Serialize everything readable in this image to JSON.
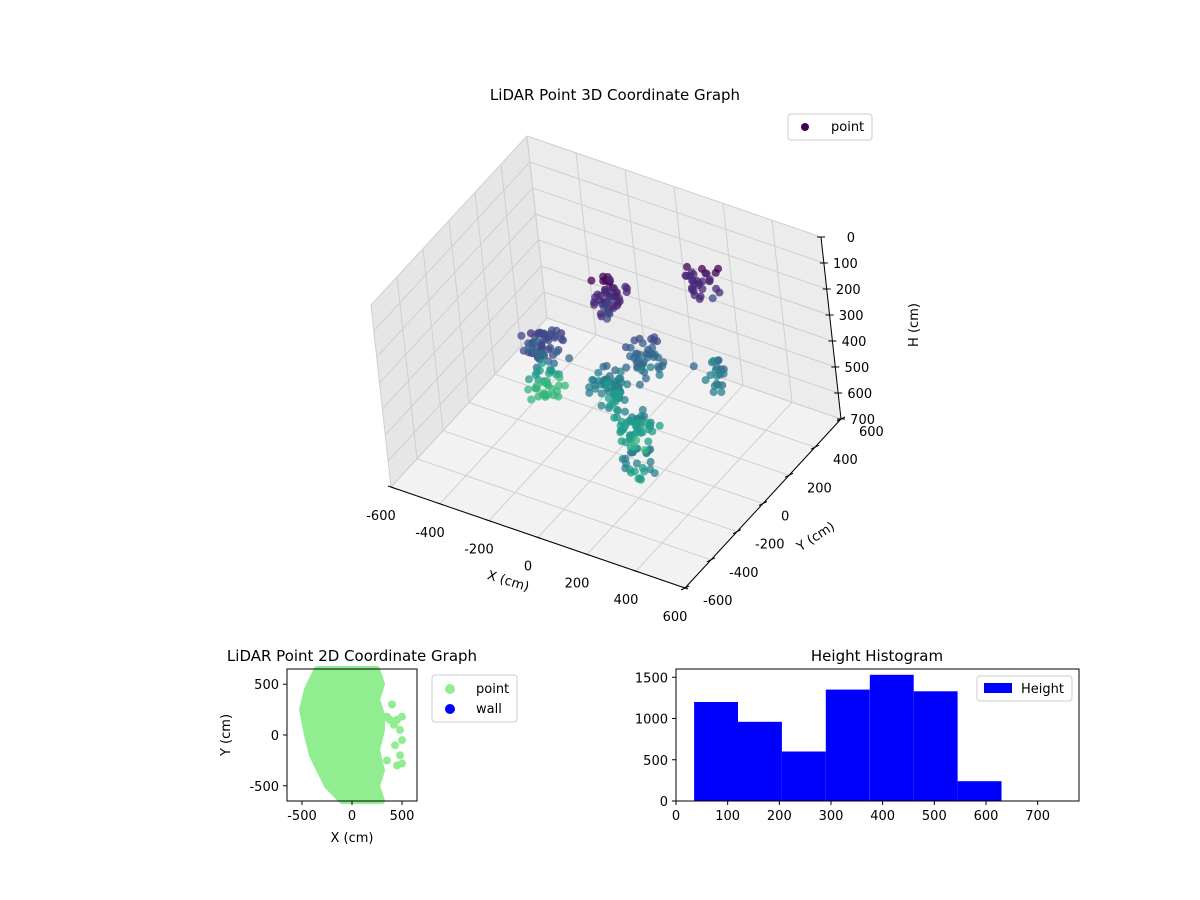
{
  "chart_data": [
    {
      "type": "scatter3d",
      "title": "LiDAR Point 3D Coordinate Graph",
      "xlabel": "X (cm)",
      "ylabel": "Y (cm)",
      "zlabel": "H (cm)",
      "xlim": [
        -600,
        600
      ],
      "ylim": [
        -600,
        600
      ],
      "zlim": [
        0,
        700
      ],
      "z_inverted": true,
      "x_ticks": [
        "-600",
        "-400",
        "-200",
        "0",
        "200",
        "400",
        "600"
      ],
      "y_ticks": [
        "-600",
        "-400",
        "-200",
        "0",
        "200",
        "400",
        "600"
      ],
      "z_ticks": [
        "0",
        "100",
        "200",
        "300",
        "400",
        "500",
        "600",
        "700"
      ],
      "colormap": "viridis",
      "grid": true,
      "legend": {
        "position": "top-right",
        "entries": [
          {
            "label": "point",
            "color": "#440154"
          }
        ]
      },
      "series": [
        {
          "name": "point",
          "clusters": [
            {
              "x": -200,
              "y": -100,
              "h": 300,
              "count": 60
            },
            {
              "x": -50,
              "y": 150,
              "h": 200,
              "count": 50
            },
            {
              "x": 0,
              "y": 0,
              "h": 450,
              "count": 60
            },
            {
              "x": 150,
              "y": -100,
              "h": 500,
              "count": 50
            },
            {
              "x": 100,
              "y": 100,
              "h": 350,
              "count": 40
            },
            {
              "x": 300,
              "y": -350,
              "h": 450,
              "count": 25
            },
            {
              "x": 350,
              "y": 200,
              "h": 400,
              "count": 20
            },
            {
              "x": 200,
              "y": 400,
              "h": 200,
              "count": 30
            },
            {
              "x": -300,
              "y": 50,
              "h": 550,
              "count": 35
            }
          ]
        }
      ]
    },
    {
      "type": "scatter",
      "title": "LiDAR Point 2D Coordinate Graph",
      "xlabel": "X (cm)",
      "ylabel": "Y (cm)",
      "xlim": [
        -650,
        650
      ],
      "ylim": [
        -650,
        650
      ],
      "x_ticks": [
        "-500",
        "0",
        "500"
      ],
      "y_ticks": [
        "-500",
        "0",
        "500"
      ],
      "legend": {
        "position": "outside-right",
        "entries": [
          {
            "label": "point",
            "color": "#90ee90"
          },
          {
            "label": "wall",
            "color": "#0000ff"
          }
        ]
      },
      "series": [
        {
          "name": "point",
          "color": "#90ee90",
          "outline": [
            [
              -350,
              650
            ],
            [
              250,
              650
            ],
            [
              300,
              500
            ],
            [
              250,
              350
            ],
            [
              300,
              200
            ],
            [
              300,
              50
            ],
            [
              250,
              -150
            ],
            [
              300,
              -350
            ],
            [
              250,
              -500
            ],
            [
              300,
              -650
            ],
            [
              -100,
              -650
            ],
            [
              -250,
              -500
            ],
            [
              -400,
              -200
            ],
            [
              -450,
              0
            ],
            [
              -500,
              250
            ],
            [
              -450,
              450
            ]
          ],
          "outliers": [
            [
              400,
              300
            ],
            [
              450,
              150
            ],
            [
              500,
              180
            ],
            [
              420,
              100
            ],
            [
              480,
              50
            ],
            [
              500,
              -50
            ],
            [
              430,
              -100
            ],
            [
              480,
              -200
            ],
            [
              500,
              -280
            ],
            [
              450,
              -300
            ],
            [
              350,
              -250
            ],
            [
              380,
              150
            ],
            [
              350,
              180
            ],
            [
              300,
              150
            ]
          ]
        },
        {
          "name": "wall",
          "color": "#0000ff",
          "points": []
        }
      ]
    },
    {
      "type": "histogram",
      "title": "Height Histogram",
      "xlim": [
        0,
        780
      ],
      "ylim": [
        0,
        1600
      ],
      "x_ticks": [
        "0",
        "100",
        "200",
        "300",
        "400",
        "500",
        "600",
        "700"
      ],
      "y_ticks": [
        "0",
        "500",
        "1000",
        "1500"
      ],
      "legend": {
        "position": "top-right",
        "entries": [
          {
            "label": "Height",
            "color": "#0000ff"
          }
        ]
      },
      "series": [
        {
          "name": "Height",
          "color": "#0000ff",
          "bin_edges": [
            35,
            120,
            205,
            290,
            375,
            460,
            545,
            630
          ],
          "counts": [
            1200,
            960,
            600,
            1350,
            1530,
            1330,
            240
          ]
        }
      ]
    }
  ]
}
